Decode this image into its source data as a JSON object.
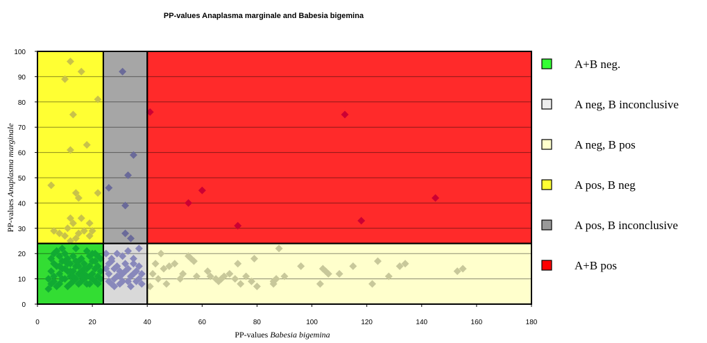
{
  "chart_data": {
    "type": "scatter",
    "title": "PP-values Anaplasma  marginale  and Babesia bigemina",
    "xlabel": {
      "prefix": "PP-values ",
      "italic": "Babesia bigemina"
    },
    "ylabel": {
      "prefix": "PP-values ",
      "italic": "Anaplasma marginale"
    },
    "xlim": [
      0,
      180
    ],
    "ylim": [
      0,
      100
    ],
    "x_ticks": [
      0,
      20,
      40,
      60,
      80,
      100,
      120,
      140,
      160,
      180
    ],
    "y_ticks": [
      0,
      10,
      20,
      30,
      40,
      50,
      60,
      70,
      80,
      90,
      100
    ],
    "grid": {
      "horizontal": true,
      "vertical": false
    },
    "legend_position": "right",
    "regions": [
      {
        "name": "A+B neg.",
        "x": [
          0,
          24
        ],
        "y": [
          0,
          24
        ],
        "color": "#33dd33"
      },
      {
        "name": "A neg, B inconclusive",
        "x": [
          24,
          40
        ],
        "y": [
          0,
          24
        ],
        "color": "#d9d9d9"
      },
      {
        "name": "A neg, B pos",
        "x": [
          40,
          180
        ],
        "y": [
          0,
          24
        ],
        "color": "#ffffcc"
      },
      {
        "name": "A pos, B neg",
        "x": [
          0,
          24
        ],
        "y": [
          24,
          100
        ],
        "color": "#ffff33"
      },
      {
        "name": "A pos, B inconclusive",
        "x": [
          24,
          40
        ],
        "y": [
          24,
          100
        ],
        "color": "#a6a6a6"
      },
      {
        "name": "A+B pos",
        "x": [
          40,
          180
        ],
        "y": [
          24,
          100
        ],
        "color": "#ff2a2a"
      }
    ],
    "legend": [
      {
        "label": "A+B neg.",
        "color": "#33ff33"
      },
      {
        "label": "A neg, B inconclusive",
        "color": "#eeeeee"
      },
      {
        "label": "A neg, B pos",
        "color": "#ffffcc"
      },
      {
        "label": "A pos, B neg",
        "color": "#ffff33"
      },
      {
        "label": "A pos, B inconclusive",
        "color": "#999999"
      },
      {
        "label": "A+B pos",
        "color": "#ff0000"
      }
    ],
    "marker_colors": {
      "A+B neg.": "#11aa33",
      "A neg, B inconclusive": "#8888bb",
      "A neg, B pos": "#c8c89a",
      "A pos, B neg": "#c8c24a",
      "A pos, B inconclusive": "#6a6a99",
      "A+B pos": "#cc0033"
    },
    "series": [
      {
        "name": "A+B pos",
        "points": [
          [
            41,
            76
          ],
          [
            112,
            75
          ],
          [
            60,
            45
          ],
          [
            55,
            40
          ],
          [
            145,
            42
          ],
          [
            73,
            31
          ],
          [
            118,
            33
          ]
        ]
      },
      {
        "name": "A pos, B inconclusive",
        "points": [
          [
            31,
            92
          ],
          [
            35,
            59
          ],
          [
            33,
            51
          ],
          [
            26,
            46
          ],
          [
            32,
            39
          ],
          [
            32,
            28
          ],
          [
            34,
            26
          ]
        ]
      },
      {
        "name": "A pos, B neg",
        "points": [
          [
            12,
            96
          ],
          [
            16,
            92
          ],
          [
            10,
            89
          ],
          [
            22,
            81
          ],
          [
            13,
            75
          ],
          [
            18,
            63
          ],
          [
            12,
            61
          ],
          [
            5,
            47
          ],
          [
            14,
            44
          ],
          [
            22,
            44
          ],
          [
            15,
            42
          ],
          [
            12,
            34
          ],
          [
            16,
            34
          ],
          [
            19,
            32
          ],
          [
            13,
            32
          ],
          [
            11,
            30
          ],
          [
            17,
            29
          ],
          [
            6,
            29
          ],
          [
            8,
            28
          ],
          [
            10,
            27
          ],
          [
            20,
            29
          ],
          [
            15,
            28
          ],
          [
            19,
            27
          ],
          [
            14,
            26
          ],
          [
            12,
            25
          ]
        ]
      },
      {
        "name": "A neg, B inconclusive",
        "points": [
          [
            25,
            20
          ],
          [
            27,
            17
          ],
          [
            29,
            15
          ],
          [
            31,
            19
          ],
          [
            33,
            21
          ],
          [
            35,
            16
          ],
          [
            37,
            22
          ],
          [
            26,
            12
          ],
          [
            28,
            10
          ],
          [
            30,
            8
          ],
          [
            32,
            13
          ],
          [
            34,
            11
          ],
          [
            36,
            9
          ],
          [
            38,
            12
          ],
          [
            27,
            18
          ],
          [
            29,
            11
          ],
          [
            31,
            9
          ],
          [
            33,
            14
          ],
          [
            35,
            12
          ],
          [
            37,
            10
          ],
          [
            26,
            9
          ],
          [
            28,
            14
          ],
          [
            30,
            13
          ],
          [
            32,
            16
          ],
          [
            34,
            7
          ],
          [
            36,
            13
          ],
          [
            38,
            8
          ],
          [
            25,
            14
          ],
          [
            27,
            8
          ],
          [
            29,
            20
          ],
          [
            31,
            12
          ],
          [
            33,
            9
          ],
          [
            35,
            18
          ],
          [
            37,
            15
          ],
          [
            26,
            16
          ],
          [
            28,
            7
          ],
          [
            30,
            11
          ]
        ]
      },
      {
        "name": "A neg, B pos",
        "points": [
          [
            41,
            7
          ],
          [
            42,
            12
          ],
          [
            43,
            16
          ],
          [
            44,
            10
          ],
          [
            45,
            20
          ],
          [
            46,
            14
          ],
          [
            47,
            8
          ],
          [
            48,
            15
          ],
          [
            50,
            16
          ],
          [
            52,
            10
          ],
          [
            53,
            12
          ],
          [
            55,
            19
          ],
          [
            56,
            18
          ],
          [
            57,
            17
          ],
          [
            58,
            11
          ],
          [
            62,
            13
          ],
          [
            63,
            11
          ],
          [
            65,
            10
          ],
          [
            66,
            9
          ],
          [
            67,
            10
          ],
          [
            68,
            11
          ],
          [
            70,
            12
          ],
          [
            72,
            10
          ],
          [
            73,
            16
          ],
          [
            74,
            8
          ],
          [
            76,
            11
          ],
          [
            78,
            9
          ],
          [
            79,
            18
          ],
          [
            80,
            7
          ],
          [
            86,
            9
          ],
          [
            86,
            8
          ],
          [
            87,
            10
          ],
          [
            88,
            22
          ],
          [
            90,
            11
          ],
          [
            96,
            15
          ],
          [
            103,
            8
          ],
          [
            104,
            14
          ],
          [
            105,
            13
          ],
          [
            106,
            12
          ],
          [
            110,
            12
          ],
          [
            115,
            15
          ],
          [
            122,
            8
          ],
          [
            124,
            17
          ],
          [
            128,
            11
          ],
          [
            132,
            15
          ],
          [
            134,
            16
          ],
          [
            153,
            13
          ],
          [
            155,
            14
          ]
        ]
      },
      {
        "name": "A+B neg.",
        "points": [
          [
            4,
            6
          ],
          [
            5,
            18
          ],
          [
            6,
            11
          ],
          [
            6,
            9
          ],
          [
            7,
            15
          ],
          [
            7,
            21
          ],
          [
            8,
            12
          ],
          [
            8,
            8
          ],
          [
            9,
            17
          ],
          [
            9,
            14
          ],
          [
            10,
            10
          ],
          [
            10,
            20
          ],
          [
            11,
            13
          ],
          [
            11,
            7
          ],
          [
            12,
            16
          ],
          [
            12,
            11
          ],
          [
            13,
            19
          ],
          [
            13,
            9
          ],
          [
            14,
            15
          ],
          [
            14,
            22
          ],
          [
            15,
            12
          ],
          [
            15,
            8
          ],
          [
            16,
            18
          ],
          [
            16,
            13
          ],
          [
            17,
            10
          ],
          [
            17,
            16
          ],
          [
            18,
            21
          ],
          [
            18,
            14
          ],
          [
            19,
            11
          ],
          [
            19,
            8
          ],
          [
            20,
            17
          ],
          [
            20,
            12
          ],
          [
            21,
            20
          ],
          [
            21,
            9
          ],
          [
            22,
            15
          ],
          [
            22,
            11
          ],
          [
            23,
            18
          ],
          [
            23,
            13
          ],
          [
            5,
            13
          ],
          [
            6,
            16
          ],
          [
            7,
            7
          ],
          [
            8,
            19
          ],
          [
            9,
            10
          ],
          [
            10,
            14
          ],
          [
            11,
            18
          ],
          [
            12,
            8
          ],
          [
            13,
            13
          ],
          [
            14,
            10
          ],
          [
            15,
            17
          ],
          [
            16,
            9
          ],
          [
            17,
            14
          ],
          [
            18,
            11
          ],
          [
            19,
            19
          ],
          [
            20,
            10
          ],
          [
            21,
            14
          ],
          [
            22,
            8
          ],
          [
            23,
            10
          ],
          [
            4,
            10
          ],
          [
            5,
            8
          ],
          [
            9,
            22
          ],
          [
            11,
            16
          ],
          [
            13,
            11
          ],
          [
            15,
            15
          ],
          [
            17,
            12
          ],
          [
            19,
            15
          ],
          [
            21,
            17
          ],
          [
            6,
            20
          ],
          [
            8,
            15
          ],
          [
            10,
            17
          ],
          [
            12,
            13
          ],
          [
            14,
            17
          ],
          [
            16,
            11
          ],
          [
            18,
            8
          ],
          [
            20,
            20
          ],
          [
            22,
            19
          ]
        ]
      }
    ]
  }
}
